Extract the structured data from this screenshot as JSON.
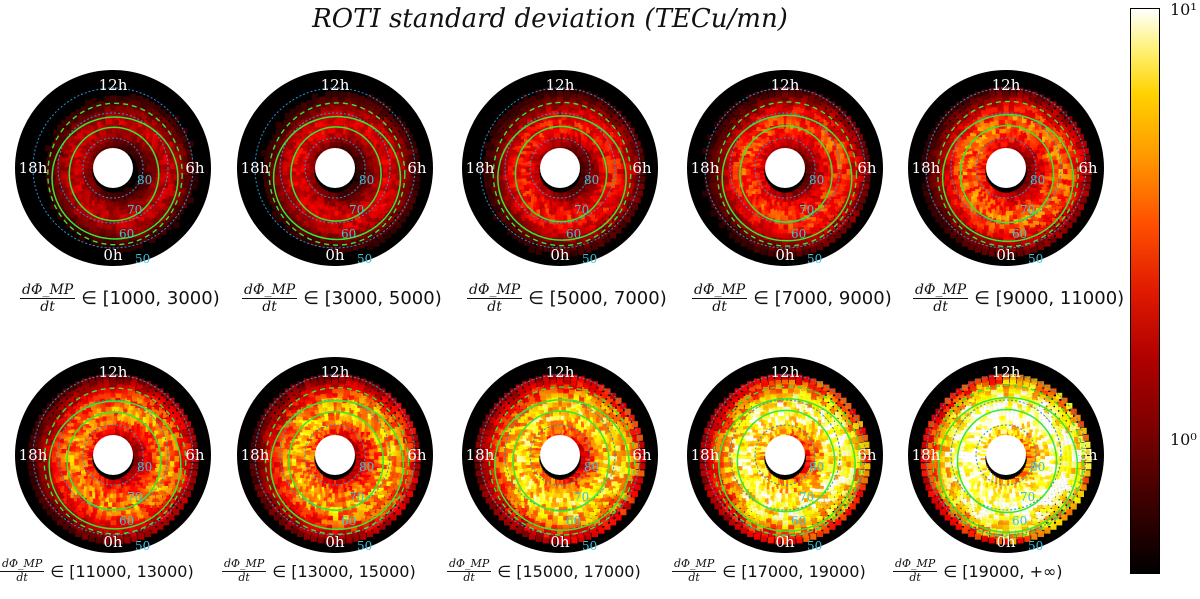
{
  "title": "ROTI standard deviation (TECu/mn)",
  "chart_data": {
    "type": "polar-heatmap",
    "title": "ROTI standard deviation (TECu/mn)",
    "colorbar": {
      "scale": "log",
      "tick_labels": [
        "10¹",
        "10⁰"
      ],
      "ticks": [
        10,
        1
      ],
      "colormap": "hot"
    },
    "mlt_labels": {
      "top": "12h",
      "bottom": "0h",
      "left": "18h",
      "right": "6h"
    },
    "latitude_labels": [
      "80",
      "70",
      "60",
      "50"
    ],
    "panels": [
      {
        "fraction": {
          "num": "dΦ_MP",
          "den": "dt"
        },
        "interval": "∈ [1000, 3000)",
        "intensity": 0.12
      },
      {
        "fraction": {
          "num": "dΦ_MP",
          "den": "dt"
        },
        "interval": "∈ [3000, 5000)",
        "intensity": 0.18
      },
      {
        "fraction": {
          "num": "dΦ_MP",
          "den": "dt"
        },
        "interval": "∈ [5000, 7000)",
        "intensity": 0.27
      },
      {
        "fraction": {
          "num": "dΦ_MP",
          "den": "dt"
        },
        "interval": "∈ [7000, 9000)",
        "intensity": 0.35
      },
      {
        "fraction": {
          "num": "dΦ_MP",
          "den": "dt"
        },
        "interval": "∈ [9000, 11000)",
        "intensity": 0.42
      },
      {
        "fraction": {
          "num": "dΦ_MP",
          "den": "dt"
        },
        "interval": "∈ [11000, 13000)",
        "intensity": 0.48
      },
      {
        "fraction": {
          "num": "dΦ_MP",
          "den": "dt"
        },
        "interval": "∈ [13000, 15000)",
        "intensity": 0.55
      },
      {
        "fraction": {
          "num": "dΦ_MP",
          "den": "dt"
        },
        "interval": "∈ [15000, 17000)",
        "intensity": 0.66
      },
      {
        "fraction": {
          "num": "dΦ_MP",
          "den": "dt"
        },
        "interval": "∈ [17000, 19000)",
        "intensity": 0.78
      },
      {
        "fraction": {
          "num": "dΦ_MP",
          "den": "dt"
        },
        "interval": "∈ [19000, +∞)",
        "intensity": 0.92
      }
    ]
  }
}
